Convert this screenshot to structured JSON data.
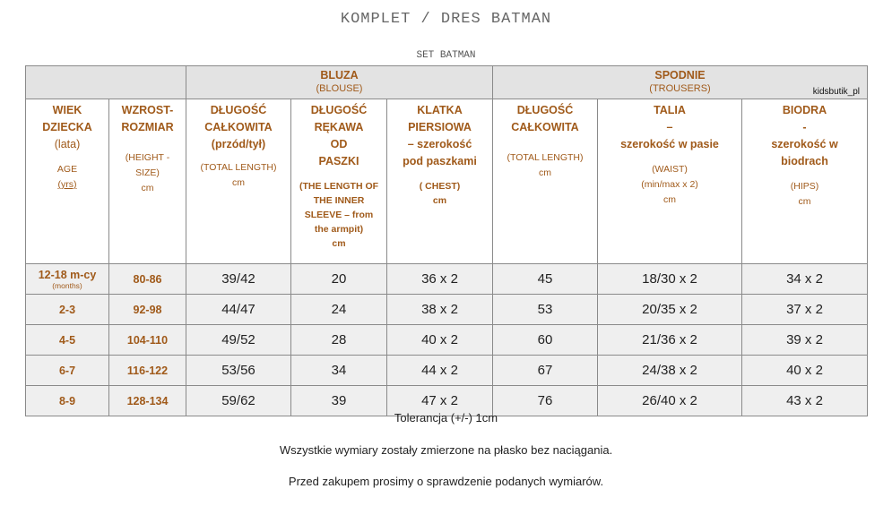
{
  "title": "KOMPLET / DRES BATMAN",
  "subtitle": "SET BATMAN",
  "brand": "kidsbutik_pl",
  "groups": {
    "bluza": {
      "title": "BLUZA",
      "sub": "(BLOUSE)"
    },
    "spodnie": {
      "title": "SPODNIE",
      "sub": "(TROUSERS)"
    }
  },
  "headers": {
    "age": {
      "l1": "WIEK",
      "l2": "DZIECKA",
      "l3": "(lata)",
      "en1": "AGE",
      "en2": "(yrs)"
    },
    "size": {
      "l1": "WZROST-",
      "l2": "ROZMIAR",
      "en1": "(HEIGHT -",
      "en2": "SIZE)",
      "unit": "cm"
    },
    "blouse_length": {
      "l1": "DŁUGOŚĆ",
      "l2": "CAŁKOWITA",
      "l3": "(przód/tył)",
      "en": "(TOTAL LENGTH)",
      "unit": "cm"
    },
    "sleeve": {
      "l1": "DŁUGOŚĆ",
      "l2": "RĘKAWA",
      "l3": "OD",
      "l4": "PASZKI",
      "en1": "(THE LENGTH OF",
      "en2": "THE INNER",
      "en3": "SLEEVE – from",
      "en4": "the armpit)",
      "unit": "cm"
    },
    "chest": {
      "l1": "KLATKA",
      "l2": "PIERSIOWA",
      "l3": "– szerokość",
      "l4": "pod paszkami",
      "en": "( CHEST)",
      "unit": "cm"
    },
    "trousers_length": {
      "l1": "DŁUGOŚĆ",
      "l2": "CAŁKOWITA",
      "en": "(TOTAL LENGTH)",
      "unit": "cm"
    },
    "waist": {
      "l1": "TALIA",
      "l2": "–",
      "l3": "szerokość w pasie",
      "en": "(WAIST)",
      "en2": "(min/max x 2)",
      "unit": "cm"
    },
    "hips": {
      "l1": "BIODRA",
      "l2": "-",
      "l3": "szerokość  w",
      "l4": "biodrach",
      "en": "(HIPS)",
      "unit": "cm"
    }
  },
  "rows": [
    {
      "age": "12-18 m-cy",
      "age_note": "(months)",
      "size": "80-86",
      "blouse_length": "39/42",
      "sleeve": "20",
      "chest": "36 x 2",
      "trousers_length": "45",
      "waist": "18/30 x 2",
      "hips": "34 x 2"
    },
    {
      "age": "2-3",
      "age_note": "",
      "size": "92-98",
      "blouse_length": "44/47",
      "sleeve": "24",
      "chest": "38 x 2",
      "trousers_length": "53",
      "waist": "20/35 x 2",
      "hips": "37 x 2"
    },
    {
      "age": "4-5",
      "age_note": "",
      "size": "104-110",
      "blouse_length": "49/52",
      "sleeve": "28",
      "chest": "40 x 2",
      "trousers_length": "60",
      "waist": "21/36 x 2",
      "hips": "39  x 2"
    },
    {
      "age": "6-7",
      "age_note": "",
      "size": "116-122",
      "blouse_length": "53/56",
      "sleeve": "34",
      "chest": "44 x 2",
      "trousers_length": "67",
      "waist": "24/38 x 2",
      "hips": "40 x 2"
    },
    {
      "age": "8-9",
      "age_note": "",
      "size": "128-134",
      "blouse_length": "59/62",
      "sleeve": "39",
      "chest": "47 x 2",
      "trousers_length": "76",
      "waist": "26/40 x 2",
      "hips": "43 x  2"
    }
  ],
  "footer": {
    "tolerance": "Tolerancja (+/-) 1cm",
    "note1": "Wszystkie wymiary zostały zmierzone na płasko bez naciągania.",
    "note2": "Przed zakupem prosimy o sprawdzenie podanych  wymiarów."
  },
  "colors": {
    "accent": "#a05a1a",
    "header_bg": "#e3e3e3",
    "row_shade": "#efefef"
  }
}
